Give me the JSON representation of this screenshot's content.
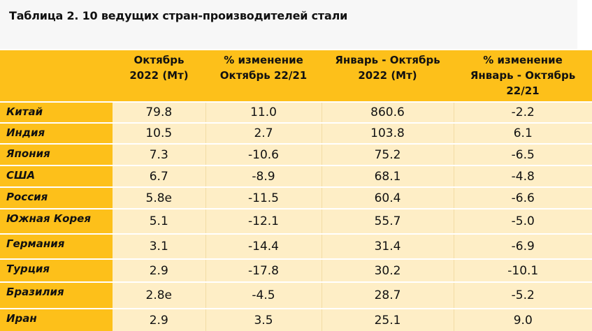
{
  "title": "Таблица 2. 10 ведущих стран-производителей стали",
  "header": {
    "col1": [
      "Октябрь",
      "2022 (Мт)"
    ],
    "col2": [
      "% изменение",
      "Октябрь 22/21"
    ],
    "col3": [
      "Январь - Октябрь",
      "2022 (Мт)"
    ],
    "col4": [
      "% изменение",
      "Январь - Октябрь",
      "22/21"
    ]
  },
  "rows": [
    {
      "country": "Китай",
      "oct": "79.8",
      "oct_change": "11.0",
      "ytd": "860.6",
      "ytd_change": "-2.2"
    },
    {
      "country": "Индия",
      "oct": "10.5",
      "oct_change": "2.7",
      "ytd": "103.8",
      "ytd_change": "6.1"
    },
    {
      "country": "Япония",
      "oct": "7.3",
      "oct_change": "-10.6",
      "ytd": "75.2",
      "ytd_change": "-6.5"
    },
    {
      "country": "США",
      "oct": "6.7",
      "oct_change": "-8.9",
      "ytd": "68.1",
      "ytd_change": "-4.8"
    },
    {
      "country": "Россия",
      "oct": "5.8e",
      "oct_change": "-11.5",
      "ytd": "60.4",
      "ytd_change": "-6.6"
    },
    {
      "country": "Южная Корея",
      "oct": "5.1",
      "oct_change": "-12.1",
      "ytd": "55.7",
      "ytd_change": "-5.0"
    },
    {
      "country": "Германия",
      "oct": "3.1",
      "oct_change": "-14.4",
      "ytd": "31.4",
      "ytd_change": "-6.9"
    },
    {
      "country": "Турция",
      "oct": "2.9",
      "oct_change": "-17.8",
      "ytd": "30.2",
      "ytd_change": "-10.1"
    },
    {
      "country": "Бразилия",
      "oct": "2.8e",
      "oct_change": "-4.5",
      "ytd": "28.7",
      "ytd_change": "-5.2"
    },
    {
      "country": "Иран",
      "oct": "2.9",
      "oct_change": "3.5",
      "ytd": "25.1",
      "ytd_change": "9.0"
    }
  ]
}
